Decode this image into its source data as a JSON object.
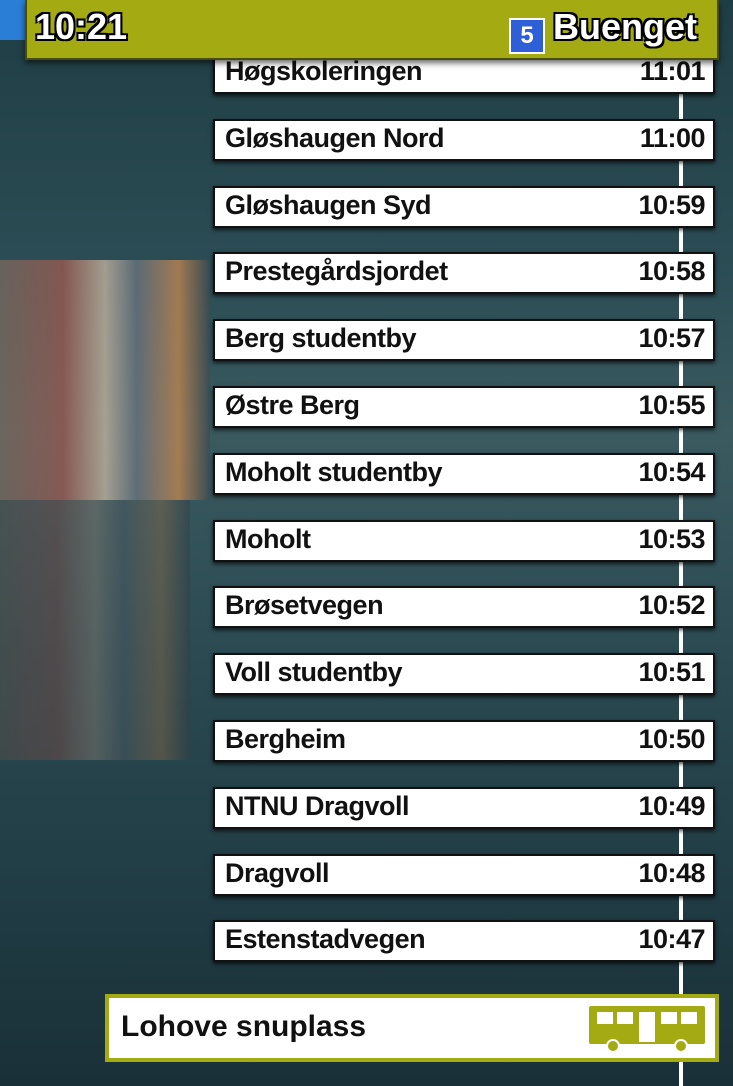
{
  "header": {
    "time": "10:21",
    "route_number": "5",
    "route_name": "Buenget"
  },
  "stops": [
    {
      "name": "Høgskoleringen",
      "time": "11:01"
    },
    {
      "name": "Gløshaugen Nord",
      "time": "11:00"
    },
    {
      "name": "Gløshaugen Syd",
      "time": "10:59"
    },
    {
      "name": "Prestegårdsjordet",
      "time": "10:58"
    },
    {
      "name": "Berg studentby",
      "time": "10:57"
    },
    {
      "name": "Østre Berg",
      "time": "10:55"
    },
    {
      "name": "Moholt studentby",
      "time": "10:54"
    },
    {
      "name": "Moholt",
      "time": "10:53"
    },
    {
      "name": "Brøsetvegen",
      "time": "10:52"
    },
    {
      "name": "Voll studentby",
      "time": "10:51"
    },
    {
      "name": "Bergheim",
      "time": "10:50"
    },
    {
      "name": "NTNU Dragvoll",
      "time": "10:49"
    },
    {
      "name": "Dragvoll",
      "time": "10:48"
    },
    {
      "name": "Estenstadvegen",
      "time": "10:47"
    }
  ],
  "final_stop": "Lohove snuplass"
}
